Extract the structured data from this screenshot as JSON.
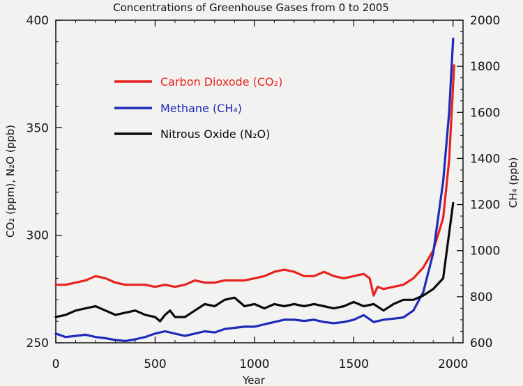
{
  "chart_data": {
    "type": "line",
    "title": "Concentrations of Greenhouse Gases from 0 to 2005",
    "xlabel": "Year",
    "ylabel_left": "CO₂ (ppm), N₂O (ppb)",
    "ylabel_right": "CH₄ (ppb)",
    "xlim": [
      0,
      2050
    ],
    "ylim_left": [
      250,
      400
    ],
    "ylim_right": [
      600,
      2000
    ],
    "xticks": [
      "0",
      "500",
      "1000",
      "1500",
      "2000"
    ],
    "yticks_left": [
      "250",
      "300",
      "350",
      "400"
    ],
    "yticks_right": [
      "600",
      "800",
      "1000",
      "1200",
      "1400",
      "1600",
      "1800",
      "2000"
    ],
    "legend_position": "upper-left",
    "series": [
      {
        "name": "Carbon Dioxode (CO₂)",
        "axis": "left",
        "color": "#e8221f",
        "x": [
          0,
          50,
          100,
          150,
          200,
          250,
          300,
          350,
          400,
          450,
          500,
          550,
          600,
          650,
          700,
          750,
          800,
          850,
          900,
          950,
          1000,
          1050,
          1100,
          1150,
          1200,
          1250,
          1300,
          1350,
          1400,
          1450,
          1500,
          1550,
          1580,
          1600,
          1620,
          1650,
          1700,
          1750,
          1800,
          1850,
          1900,
          1950,
          1980,
          2000,
          2005
        ],
        "y": [
          277,
          277,
          278,
          279,
          281,
          280,
          278,
          277,
          277,
          277,
          276,
          277,
          276,
          277,
          279,
          278,
          278,
          279,
          279,
          279,
          280,
          281,
          283,
          284,
          283,
          281,
          281,
          283,
          281,
          280,
          281,
          282,
          280,
          272,
          276,
          275,
          276,
          277,
          280,
          285,
          293,
          308,
          335,
          370,
          379
        ]
      },
      {
        "name": "Methane (CH₄)",
        "axis": "right",
        "color": "#1f2ab8",
        "x": [
          0,
          50,
          100,
          150,
          200,
          250,
          300,
          350,
          400,
          450,
          500,
          550,
          600,
          650,
          700,
          750,
          800,
          850,
          900,
          950,
          1000,
          1050,
          1100,
          1150,
          1200,
          1250,
          1300,
          1350,
          1400,
          1450,
          1500,
          1550,
          1600,
          1650,
          1700,
          1750,
          1800,
          1850,
          1900,
          1950,
          1980,
          2000
        ],
        "y": [
          640,
          625,
          630,
          635,
          625,
          620,
          612,
          608,
          615,
          625,
          640,
          650,
          640,
          630,
          640,
          650,
          645,
          660,
          665,
          670,
          670,
          680,
          690,
          700,
          700,
          695,
          700,
          690,
          685,
          690,
          700,
          720,
          690,
          700,
          705,
          710,
          740,
          820,
          990,
          1300,
          1600,
          1920
        ]
      },
      {
        "name": "Nitrous Oxide (N₂O)",
        "axis": "left",
        "color": "#0a0a0a",
        "x": [
          0,
          50,
          100,
          150,
          200,
          250,
          300,
          350,
          400,
          450,
          500,
          525,
          550,
          575,
          600,
          650,
          700,
          750,
          800,
          850,
          900,
          950,
          1000,
          1050,
          1100,
          1150,
          1200,
          1250,
          1300,
          1350,
          1400,
          1450,
          1500,
          1550,
          1600,
          1650,
          1700,
          1750,
          1800,
          1850,
          1900,
          1950,
          2000
        ],
        "y": [
          262,
          263,
          265,
          266,
          267,
          265,
          263,
          264,
          265,
          263,
          262,
          260,
          263,
          265,
          262,
          262,
          265,
          268,
          267,
          270,
          271,
          267,
          268,
          266,
          268,
          267,
          268,
          267,
          268,
          267,
          266,
          267,
          269,
          267,
          268,
          265,
          268,
          270,
          270,
          272,
          275,
          280,
          315
        ]
      }
    ]
  }
}
